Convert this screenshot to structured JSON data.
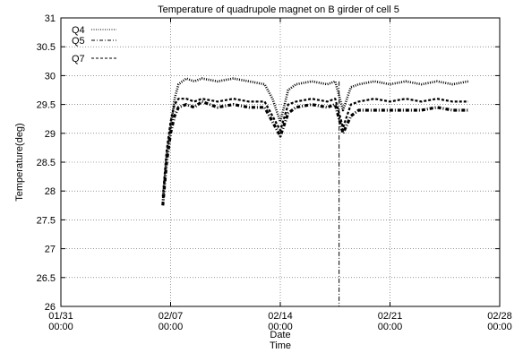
{
  "chart_data": {
    "type": "line",
    "title": "Temperature of quadrupole magnet on B girder of cell 5",
    "xlabel": "Date",
    "xlabel2": "Time",
    "ylabel": "Temperature(deg)",
    "xlim": [
      "01/31 00:00",
      "02/28 00:00"
    ],
    "ylim": [
      26,
      31
    ],
    "grid": true,
    "legend_position": "top-left",
    "x_ticks": [
      {
        "day": 0,
        "date": "01/31",
        "time": "00:00"
      },
      {
        "day": 7,
        "date": "02/07",
        "time": "00:00"
      },
      {
        "day": 14,
        "date": "02/14",
        "time": "00:00"
      },
      {
        "day": 21,
        "date": "02/21",
        "time": "00:00"
      },
      {
        "day": 28,
        "date": "02/28",
        "time": "00:00"
      }
    ],
    "y_ticks": [
      "26",
      "26.5",
      "27",
      "27.5",
      "28",
      "28.5",
      "29",
      "29.5",
      "30",
      "30.5",
      "31"
    ],
    "series": [
      {
        "name": "Q4",
        "style": "dotted",
        "x": [
          "02/06 12:00",
          "02/06 18:00",
          "02/07 00:00",
          "02/07 06:00",
          "02/07 12:00",
          "02/08 00:00",
          "02/08 12:00",
          "02/09 00:00",
          "02/10 00:00",
          "02/11 00:00",
          "02/12 00:00",
          "02/13 00:00",
          "02/13 12:00",
          "02/14 00:00",
          "02/14 12:00",
          "02/15 00:00",
          "02/16 00:00",
          "02/17 00:00",
          "02/17 12:00",
          "02/18 00:00",
          "02/18 12:00",
          "02/19 00:00",
          "02/20 00:00",
          "02/21 00:00",
          "02/22 00:00",
          "02/23 00:00",
          "02/24 00:00",
          "02/25 00:00",
          "02/26 00:00"
        ],
        "y": [
          27.8,
          28.6,
          29.1,
          29.6,
          29.85,
          29.95,
          29.9,
          29.95,
          29.9,
          29.95,
          29.9,
          29.85,
          29.6,
          29.2,
          29.75,
          29.85,
          29.9,
          29.85,
          29.9,
          29.4,
          29.8,
          29.85,
          29.9,
          29.85,
          29.9,
          29.85,
          29.9,
          29.85,
          29.9
        ]
      },
      {
        "name": "Q5",
        "style": "dash-dot",
        "x": [
          "02/06 12:00",
          "02/06 18:00",
          "02/07 00:00",
          "02/07 06:00",
          "02/07 12:00",
          "02/08 00:00",
          "02/08 12:00",
          "02/09 00:00",
          "02/10 00:00",
          "02/11 00:00",
          "02/12 00:00",
          "02/13 00:00",
          "02/13 12:00",
          "02/14 00:00",
          "02/14 12:00",
          "02/15 00:00",
          "02/16 00:00",
          "02/17 00:00",
          "02/17 12:00",
          "02/18 00:00",
          "02/18 12:00",
          "02/19 00:00",
          "02/20 00:00",
          "02/21 00:00",
          "02/22 00:00",
          "02/23 00:00",
          "02/24 00:00",
          "02/25 00:00",
          "02/26 00:00"
        ],
        "y": [
          27.75,
          28.5,
          29.0,
          29.3,
          29.45,
          29.5,
          29.45,
          29.55,
          29.45,
          29.5,
          29.45,
          29.45,
          29.2,
          28.95,
          29.35,
          29.45,
          29.5,
          29.45,
          29.5,
          29.0,
          29.3,
          29.4,
          29.4,
          29.4,
          29.4,
          29.4,
          29.45,
          29.4,
          29.4
        ]
      },
      {
        "name": "Q7",
        "style": "dashed",
        "x": [
          "02/06 12:00",
          "02/06 18:00",
          "02/07 00:00",
          "02/07 06:00",
          "02/07 12:00",
          "02/08 00:00",
          "02/08 12:00",
          "02/09 00:00",
          "02/10 00:00",
          "02/11 00:00",
          "02/12 00:00",
          "02/13 00:00",
          "02/13 12:00",
          "02/14 00:00",
          "02/14 12:00",
          "02/15 00:00",
          "02/16 00:00",
          "02/17 00:00",
          "02/17 12:00",
          "02/18 00:00",
          "02/18 12:00",
          "02/19 00:00",
          "02/20 00:00",
          "02/21 00:00",
          "02/22 00:00",
          "02/23 00:00",
          "02/24 00:00",
          "02/25 00:00",
          "02/26 00:00"
        ],
        "y": [
          27.9,
          28.7,
          29.2,
          29.5,
          29.6,
          29.6,
          29.55,
          29.6,
          29.55,
          29.6,
          29.55,
          29.55,
          29.3,
          29.05,
          29.5,
          29.55,
          29.6,
          29.55,
          29.6,
          29.1,
          29.5,
          29.55,
          29.6,
          29.55,
          29.6,
          29.55,
          29.6,
          29.55,
          29.55
        ]
      }
    ],
    "annotations": [
      {
        "type": "vertical-line",
        "x": "02/17 18:00",
        "style": "dash-dot"
      }
    ]
  }
}
